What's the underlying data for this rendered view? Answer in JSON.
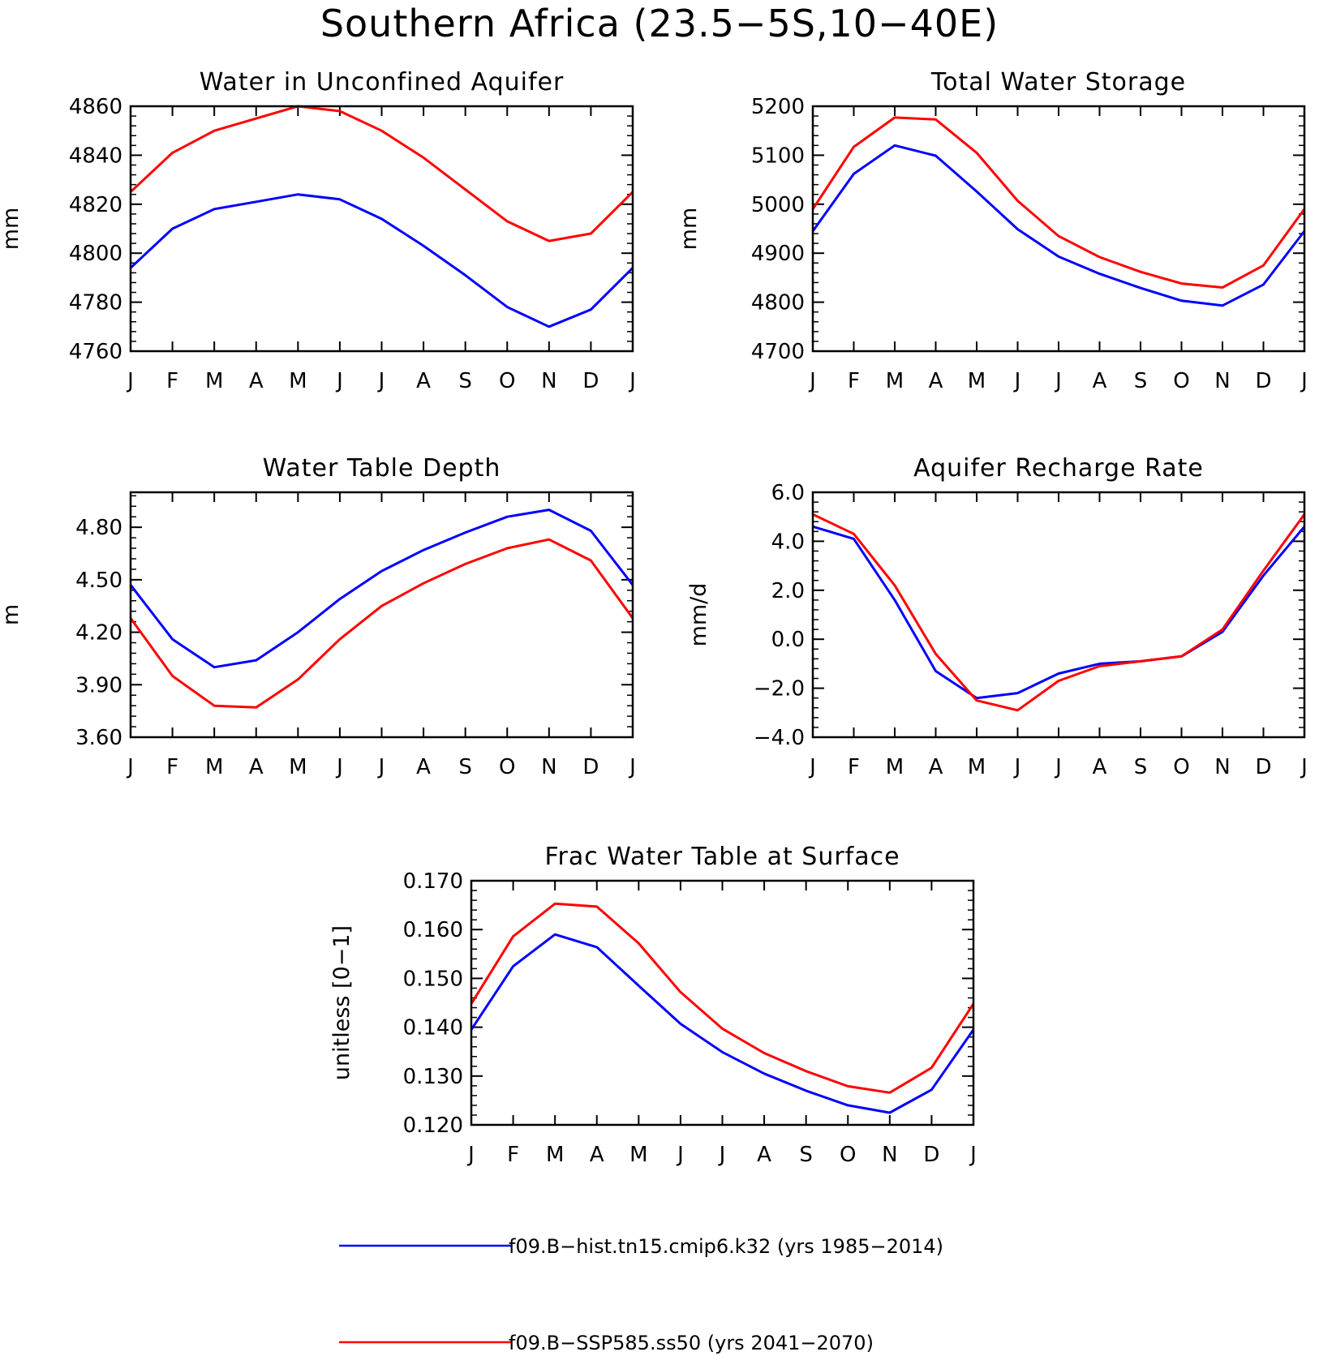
{
  "title": "Southern Africa (23.5−5S,10−40E)",
  "colors": {
    "hist": "#0000ff",
    "future": "#ff0000",
    "axis": "#000000"
  },
  "legend": {
    "items": [
      {
        "label": "f09.B−hist.tn15.cmip6.k32 (yrs 1985−2014)",
        "color": "#0000ff"
      },
      {
        "label": "f09.B−SSP585.ss50 (yrs 2041−2070)",
        "color": "#ff0000"
      }
    ]
  },
  "chart_data": [
    {
      "type": "line",
      "title": "Water in Unconfined Aquifer",
      "ylabel": "mm",
      "categories": [
        "J",
        "F",
        "M",
        "A",
        "M",
        "J",
        "J",
        "A",
        "S",
        "O",
        "N",
        "D",
        "J"
      ],
      "ylim": [
        4760,
        4860
      ],
      "yticks": [
        "4760",
        "4780",
        "4800",
        "4820",
        "4840",
        "4860"
      ],
      "series": [
        {
          "values": [
            4794,
            4810,
            4818,
            4821,
            4824,
            4822,
            4814,
            4803,
            4791,
            4778,
            4770,
            4777,
            4794
          ]
        },
        {
          "values": [
            4825,
            4841,
            4850,
            4855,
            4860,
            4858,
            4850,
            4839,
            4826,
            4813,
            4805,
            4808,
            4825
          ]
        }
      ]
    },
    {
      "type": "line",
      "title": "Total Water Storage",
      "ylabel": "mm",
      "categories": [
        "J",
        "F",
        "M",
        "A",
        "M",
        "J",
        "J",
        "A",
        "S",
        "O",
        "N",
        "D",
        "J"
      ],
      "ylim": [
        4700,
        5200
      ],
      "yticks": [
        "4700",
        "4800",
        "4900",
        "5000",
        "5100",
        "5200"
      ],
      "series": [
        {
          "values": [
            4945,
            5062,
            5120,
            5099,
            5026,
            4949,
            4893,
            4858,
            4829,
            4803,
            4793,
            4836,
            4945
          ]
        },
        {
          "values": [
            4990,
            5117,
            5177,
            5173,
            5105,
            5007,
            4935,
            4892,
            4862,
            4838,
            4830,
            4875,
            4990
          ]
        }
      ]
    },
    {
      "type": "line",
      "title": "Water Table Depth",
      "ylabel": "m",
      "categories": [
        "J",
        "F",
        "M",
        "A",
        "M",
        "J",
        "J",
        "A",
        "S",
        "O",
        "N",
        "D",
        "J"
      ],
      "ylim": [
        3.6,
        5.0
      ],
      "yticks": [
        "3.60",
        "3.90",
        "4.20",
        "4.50",
        "4.80"
      ],
      "series": [
        {
          "values": [
            4.47,
            4.16,
            4.0,
            4.04,
            4.2,
            4.39,
            4.55,
            4.67,
            4.77,
            4.86,
            4.9,
            4.78,
            4.47
          ]
        },
        {
          "values": [
            4.28,
            3.95,
            3.78,
            3.77,
            3.93,
            4.16,
            4.35,
            4.48,
            4.59,
            4.68,
            4.73,
            4.61,
            4.28
          ]
        }
      ]
    },
    {
      "type": "line",
      "title": "Aquifer Recharge Rate",
      "ylabel": "mm/d",
      "categories": [
        "J",
        "F",
        "M",
        "A",
        "M",
        "J",
        "J",
        "A",
        "S",
        "O",
        "N",
        "D",
        "J"
      ],
      "ylim": [
        -4.0,
        6.0
      ],
      "yticks": [
        "−4.0",
        "−2.0",
        "0.0",
        "2.0",
        "4.0",
        "6.0"
      ],
      "series": [
        {
          "values": [
            4.6,
            4.1,
            1.6,
            -1.3,
            -2.4,
            -2.2,
            -1.4,
            -1.0,
            -0.9,
            -0.7,
            0.3,
            2.6,
            4.6
          ]
        },
        {
          "values": [
            5.1,
            4.3,
            2.2,
            -0.6,
            -2.5,
            -2.9,
            -1.7,
            -1.1,
            -0.9,
            -0.7,
            0.4,
            2.8,
            5.1
          ]
        }
      ]
    },
    {
      "type": "line",
      "title": "Frac Water Table at Surface",
      "ylabel": "unitless [0−1]",
      "categories": [
        "J",
        "F",
        "M",
        "A",
        "M",
        "J",
        "J",
        "A",
        "S",
        "O",
        "N",
        "D",
        "J"
      ],
      "ylim": [
        0.12,
        0.17
      ],
      "yticks": [
        "0.120",
        "0.130",
        "0.140",
        "0.150",
        "0.160",
        "0.170"
      ],
      "series": [
        {
          "values": [
            0.1395,
            0.1525,
            0.159,
            0.1564,
            0.1485,
            0.1407,
            0.1349,
            0.1305,
            0.127,
            0.124,
            0.1225,
            0.1272,
            0.1395
          ]
        },
        {
          "values": [
            0.1448,
            0.1586,
            0.1653,
            0.1647,
            0.1572,
            0.1472,
            0.1397,
            0.1347,
            0.131,
            0.1279,
            0.1266,
            0.1317,
            0.1448
          ]
        }
      ]
    }
  ]
}
